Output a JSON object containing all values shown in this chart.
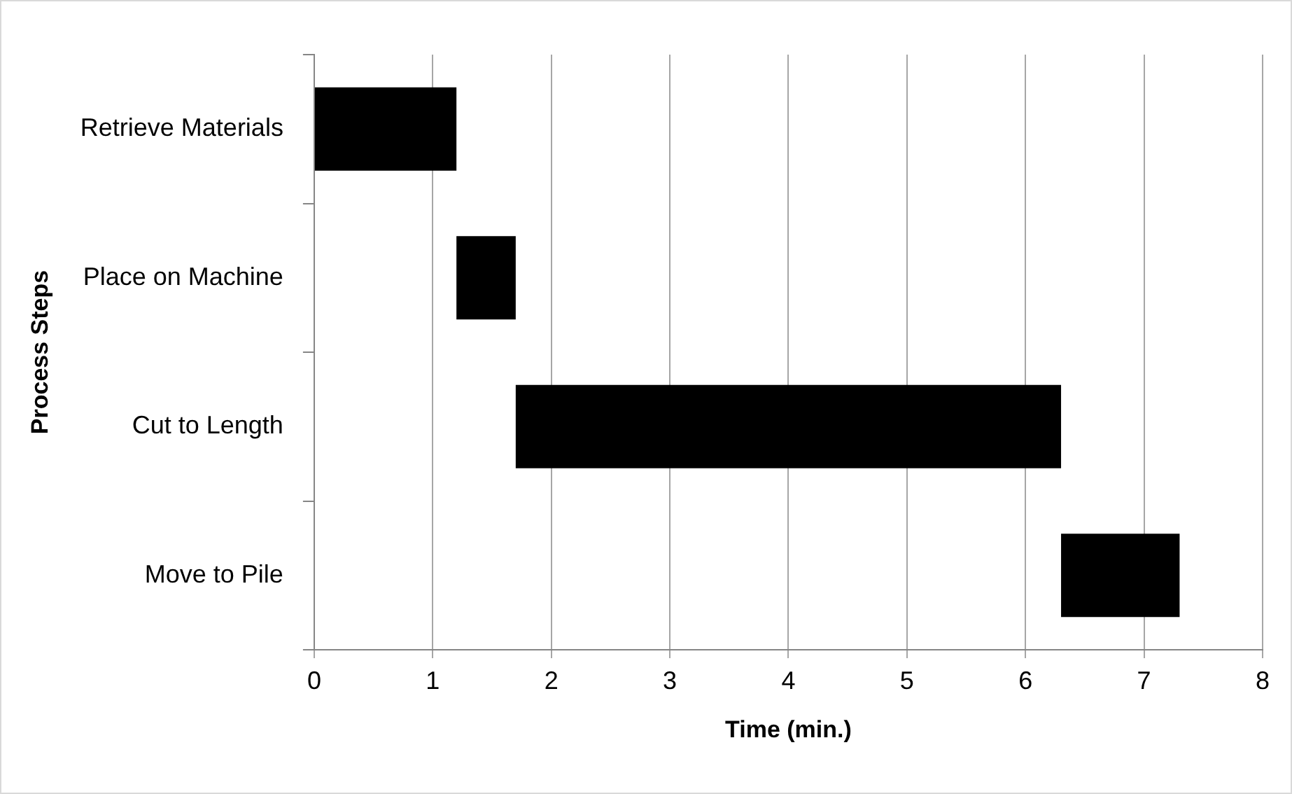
{
  "chart_data": {
    "type": "bar",
    "orientation": "horizontal",
    "xlabel": "Time (min.)",
    "ylabel": "Process Steps",
    "categories": [
      "Retrieve Materials",
      "Place on Machine",
      "Cut to Length",
      "Move to Pile"
    ],
    "values": [
      1.2,
      0.5,
      4.6,
      1.0
    ],
    "base": [
      0,
      1.2,
      1.7,
      6.3
    ],
    "color": "#000000",
    "xlim": [
      0,
      8
    ],
    "xticks": [
      0,
      1,
      2,
      3,
      4,
      5,
      6,
      7,
      8
    ],
    "grid": "x",
    "legend": false
  }
}
